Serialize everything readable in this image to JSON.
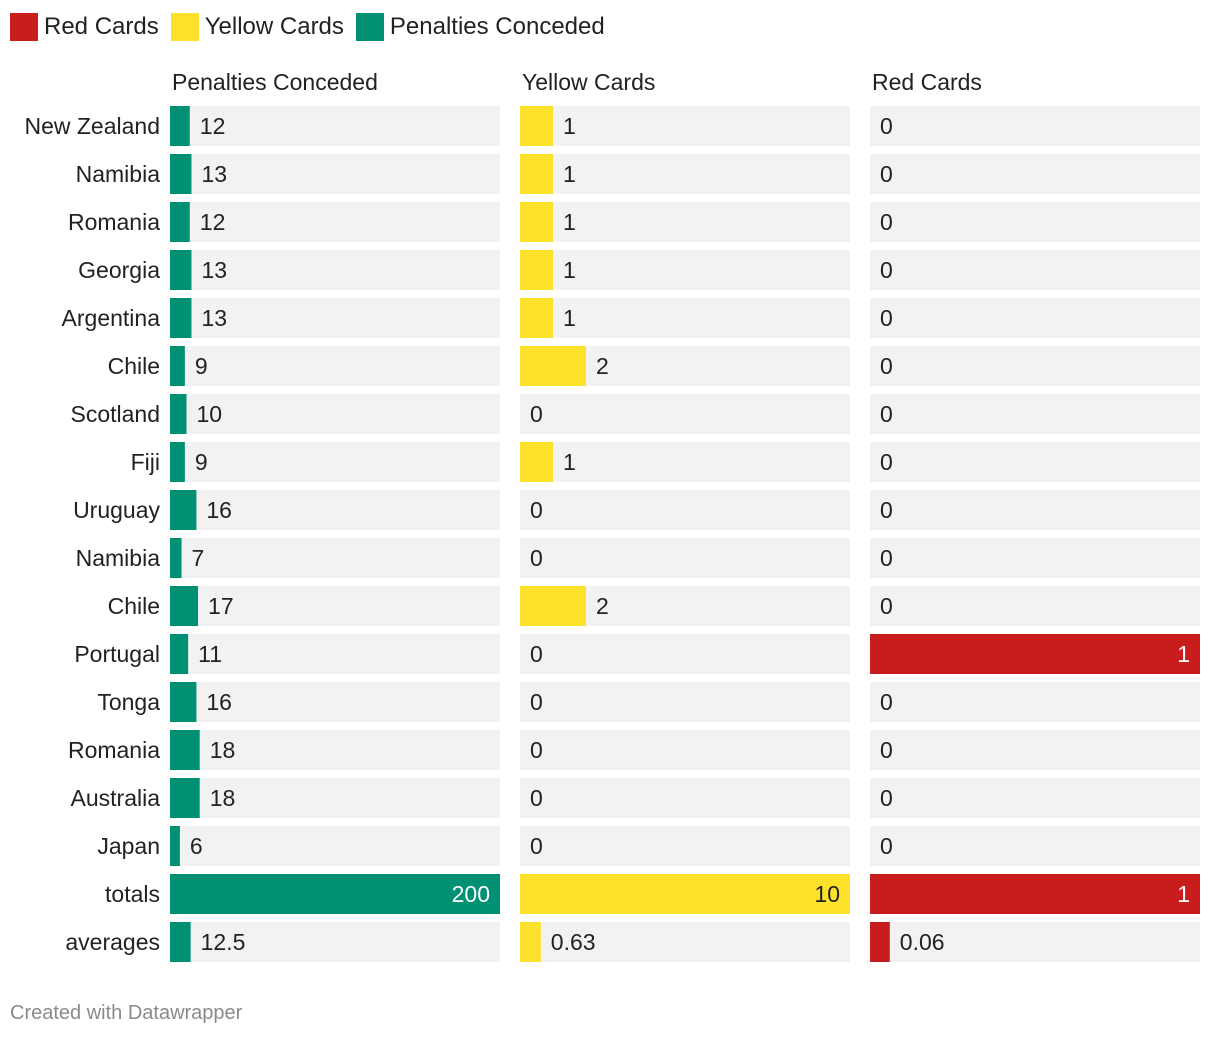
{
  "legend": [
    {
      "label": "Red Cards",
      "color": "#c91d1d"
    },
    {
      "label": "Yellow Cards",
      "color": "#fee12b"
    },
    {
      "label": "Penalties Conceded",
      "color": "#009174"
    }
  ],
  "footer": "Created with Datawrapper",
  "colors": {
    "penalties": "#009174",
    "yellow": "#fee12b",
    "red": "#c91d1d",
    "track": "#f2f2f2"
  },
  "chart_data": {
    "type": "bar",
    "categories": [
      "New Zealand",
      "Namibia",
      "Romania",
      "Georgia",
      "Argentina",
      "Chile",
      "Scotland",
      "Fiji",
      "Uruguay",
      "Namibia",
      "Chile",
      "Portugal",
      "Tonga",
      "Romania",
      "Australia",
      "Japan",
      "totals",
      "averages"
    ],
    "series": [
      {
        "name": "Penalties Conceded",
        "color": "#009174",
        "values": [
          12,
          13,
          12,
          13,
          13,
          9,
          10,
          9,
          16,
          7,
          17,
          11,
          16,
          18,
          18,
          6,
          200,
          12.5
        ],
        "labels": [
          "12",
          "13",
          "12",
          "13",
          "13",
          "9",
          "10",
          "9",
          "16",
          "7",
          "17",
          "11",
          "16",
          "18",
          "18",
          "6",
          "200",
          "12.5"
        ],
        "max": 200
      },
      {
        "name": "Yellow Cards",
        "color": "#fee12b",
        "values": [
          1,
          1,
          1,
          1,
          1,
          2,
          0,
          1,
          0,
          0,
          2,
          0,
          0,
          0,
          0,
          0,
          10,
          0.63
        ],
        "labels": [
          "1",
          "1",
          "1",
          "1",
          "1",
          "2",
          "0",
          "1",
          "0",
          "0",
          "2",
          "0",
          "0",
          "0",
          "0",
          "0",
          "10",
          "0.63"
        ],
        "max": 10
      },
      {
        "name": "Red Cards",
        "color": "#c91d1d",
        "values": [
          0,
          0,
          0,
          0,
          0,
          0,
          0,
          0,
          0,
          0,
          0,
          1,
          0,
          0,
          0,
          0,
          1,
          0.06
        ],
        "labels": [
          "0",
          "0",
          "0",
          "0",
          "0",
          "0",
          "0",
          "0",
          "0",
          "0",
          "0",
          "1",
          "0",
          "0",
          "0",
          "0",
          "1",
          "0.06"
        ],
        "max": 1
      }
    ]
  }
}
